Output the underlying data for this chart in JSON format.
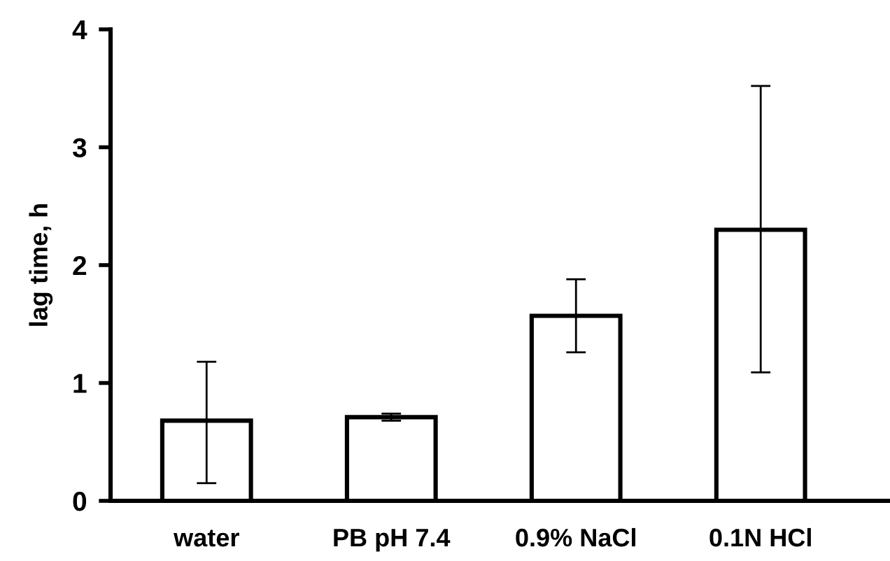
{
  "chart_data": {
    "type": "bar",
    "ylabel": "lag time, h",
    "categories": [
      "water",
      "PB pH 7.4",
      "0.9% NaCl",
      "0.1N HCl"
    ],
    "values": [
      0.68,
      0.71,
      1.57,
      2.3
    ],
    "errors": [
      [
        0.15,
        1.18
      ],
      [
        0.68,
        0.74
      ],
      [
        1.26,
        1.88
      ],
      [
        1.09,
        3.52
      ]
    ],
    "color": "#ffffff",
    "ylim": [
      0,
      4
    ],
    "yticks": [
      0,
      1,
      2,
      3,
      4
    ],
    "grid": false
  }
}
